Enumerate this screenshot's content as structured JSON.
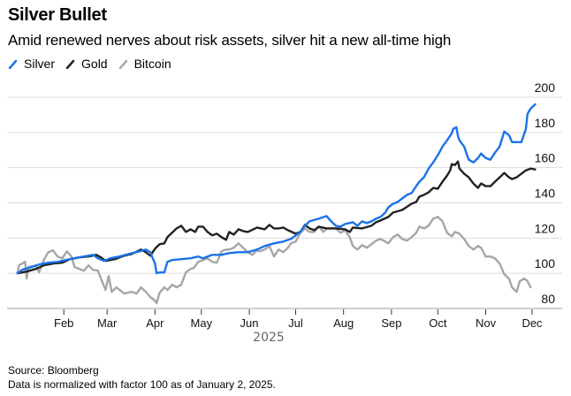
{
  "title": "Silver Bullet",
  "subtitle": "Amid renewed nerves about risk assets, silver hit a new all-time high",
  "footer": {
    "source": "Source: Bloomberg",
    "note": "Data is normalized with factor 100 as of January 2, 2025."
  },
  "chart_data": {
    "type": "line",
    "title": "Silver Bullet",
    "subtitle": "Amid renewed nerves about risk assets, silver hit a new all-time high",
    "xlabel": "2025",
    "ylabel": "",
    "x_unit": "day of year 2025 (Jan 1 = 0)",
    "xlim": [
      0,
      338
    ],
    "ylim": [
      80,
      200
    ],
    "yticks": [
      80,
      100,
      120,
      140,
      160,
      180,
      200
    ],
    "xticks": [
      {
        "label": "Feb",
        "day": 31
      },
      {
        "label": "Mar",
        "day": 59
      },
      {
        "label": "Apr",
        "day": 90
      },
      {
        "label": "May",
        "day": 120
      },
      {
        "label": "Jun",
        "day": 151
      },
      {
        "label": "Jul",
        "day": 181
      },
      {
        "label": "Aug",
        "day": 212
      },
      {
        "label": "Sep",
        "day": 243
      },
      {
        "label": "Oct",
        "day": 273
      },
      {
        "label": "Nov",
        "day": 304
      },
      {
        "label": "Dec",
        "day": 334
      }
    ],
    "grid": true,
    "legend_position": "top-left",
    "series": [
      {
        "name": "Silver",
        "color": "#1a73e8",
        "points": [
          [
            1,
            100
          ],
          [
            4,
            102
          ],
          [
            10,
            103.5
          ],
          [
            15,
            105
          ],
          [
            21,
            106
          ],
          [
            27,
            106.5
          ],
          [
            32,
            107.5
          ],
          [
            38,
            108.5
          ],
          [
            44,
            109.5
          ],
          [
            50,
            110.5
          ],
          [
            53,
            108.5
          ],
          [
            57,
            107
          ],
          [
            61,
            108.5
          ],
          [
            67,
            109.5
          ],
          [
            73,
            111
          ],
          [
            78,
            112
          ],
          [
            84,
            113.5
          ],
          [
            87,
            112
          ],
          [
            88,
            109.5
          ],
          [
            90,
            105.5
          ],
          [
            91,
            100
          ],
          [
            93,
            100.5
          ],
          [
            96,
            100.5
          ],
          [
            98,
            106.5
          ],
          [
            101,
            107.5
          ],
          [
            107,
            108
          ],
          [
            113,
            108.5
          ],
          [
            118,
            109.5
          ],
          [
            121,
            108.5
          ],
          [
            124,
            109.5
          ],
          [
            127,
            110.5
          ],
          [
            133,
            110.5
          ],
          [
            138,
            111.5
          ],
          [
            144,
            112
          ],
          [
            150,
            112
          ],
          [
            156,
            113.5
          ],
          [
            161,
            115.5
          ],
          [
            167,
            117
          ],
          [
            173,
            118
          ],
          [
            178,
            119.5
          ],
          [
            184,
            123.5
          ],
          [
            187,
            127
          ],
          [
            190,
            129.5
          ],
          [
            196,
            131
          ],
          [
            201,
            132.5
          ],
          [
            204,
            129.5
          ],
          [
            207,
            127
          ],
          [
            210,
            126.5
          ],
          [
            213,
            128
          ],
          [
            218,
            129
          ],
          [
            221,
            127
          ],
          [
            224,
            129.5
          ],
          [
            227,
            128.5
          ],
          [
            230,
            129.5
          ],
          [
            233,
            131
          ],
          [
            236,
            132
          ],
          [
            239,
            134.5
          ],
          [
            241,
            137.5
          ],
          [
            244,
            139.5
          ],
          [
            247,
            140.5
          ],
          [
            250,
            142.5
          ],
          [
            253,
            144.5
          ],
          [
            256,
            145.5
          ],
          [
            259,
            149.5
          ],
          [
            261,
            152
          ],
          [
            264,
            154.5
          ],
          [
            267,
            159.5
          ],
          [
            270,
            163
          ],
          [
            273,
            167
          ],
          [
            276,
            172
          ],
          [
            279,
            175.5
          ],
          [
            282,
            179.5
          ],
          [
            283,
            182
          ],
          [
            285,
            183
          ],
          [
            286,
            178
          ],
          [
            287,
            175.5
          ],
          [
            290,
            172
          ],
          [
            291,
            169.5
          ],
          [
            293,
            164.5
          ],
          [
            296,
            163
          ],
          [
            299,
            165.5
          ],
          [
            301,
            168
          ],
          [
            304,
            165.5
          ],
          [
            307,
            164.5
          ],
          [
            310,
            168.5
          ],
          [
            313,
            172
          ],
          [
            316,
            180.5
          ],
          [
            319,
            178.5
          ],
          [
            321,
            174.5
          ],
          [
            324,
            174.5
          ],
          [
            327,
            174.5
          ],
          [
            330,
            182
          ],
          [
            331,
            190.5
          ],
          [
            333,
            193.5
          ],
          [
            336,
            196
          ]
        ]
      },
      {
        "name": "Gold",
        "color": "#222222",
        "points": [
          [
            1,
            100
          ],
          [
            7,
            101
          ],
          [
            13,
            102.5
          ],
          [
            18,
            104.5
          ],
          [
            24,
            105.5
          ],
          [
            30,
            106
          ],
          [
            35,
            108
          ],
          [
            41,
            109
          ],
          [
            47,
            109.5
          ],
          [
            52,
            110.5
          ],
          [
            55,
            109
          ],
          [
            58,
            107
          ],
          [
            64,
            108
          ],
          [
            70,
            110
          ],
          [
            75,
            111
          ],
          [
            81,
            113.5
          ],
          [
            84,
            112
          ],
          [
            87,
            110
          ],
          [
            90,
            114
          ],
          [
            93,
            116.5
          ],
          [
            96,
            117
          ],
          [
            98,
            120.5
          ],
          [
            101,
            123
          ],
          [
            104,
            125.5
          ],
          [
            107,
            127
          ],
          [
            110,
            123.5
          ],
          [
            113,
            125
          ],
          [
            116,
            123.5
          ],
          [
            118,
            126.5
          ],
          [
            121,
            126.5
          ],
          [
            124,
            123.5
          ],
          [
            127,
            121.5
          ],
          [
            130,
            122.5
          ],
          [
            133,
            120.5
          ],
          [
            136,
            119
          ],
          [
            138,
            123.5
          ],
          [
            141,
            122
          ],
          [
            144,
            125
          ],
          [
            147,
            124
          ],
          [
            150,
            123.5
          ],
          [
            156,
            126
          ],
          [
            161,
            125
          ],
          [
            164,
            127.5
          ],
          [
            167,
            125.5
          ],
          [
            170,
            125.5
          ],
          [
            173,
            126
          ],
          [
            176,
            124.5
          ],
          [
            181,
            122.5
          ],
          [
            184,
            123.5
          ],
          [
            187,
            127.5
          ],
          [
            190,
            125.5
          ],
          [
            193,
            124.5
          ],
          [
            196,
            126.5
          ],
          [
            201,
            125.5
          ],
          [
            207,
            125.5
          ],
          [
            213,
            125
          ],
          [
            216,
            123.5
          ],
          [
            218,
            126
          ],
          [
            224,
            125.5
          ],
          [
            230,
            127
          ],
          [
            233,
            129
          ],
          [
            236,
            130
          ],
          [
            241,
            132
          ],
          [
            244,
            134.5
          ],
          [
            250,
            136
          ],
          [
            256,
            139.5
          ],
          [
            259,
            140.5
          ],
          [
            261,
            143.5
          ],
          [
            264,
            144.5
          ],
          [
            267,
            146
          ],
          [
            270,
            148.5
          ],
          [
            273,
            148
          ],
          [
            276,
            152
          ],
          [
            279,
            155.5
          ],
          [
            281,
            158.5
          ],
          [
            282,
            162
          ],
          [
            284,
            161.5
          ],
          [
            286,
            163.5
          ],
          [
            287,
            159.5
          ],
          [
            290,
            156.5
          ],
          [
            293,
            154.5
          ],
          [
            296,
            151
          ],
          [
            299,
            148.5
          ],
          [
            301,
            151
          ],
          [
            304,
            149.5
          ],
          [
            307,
            149.5
          ],
          [
            310,
            152
          ],
          [
            313,
            154.5
          ],
          [
            316,
            157
          ],
          [
            319,
            154.5
          ],
          [
            321,
            153.5
          ],
          [
            324,
            154.5
          ],
          [
            327,
            156.5
          ],
          [
            330,
            158.5
          ],
          [
            333,
            159.5
          ],
          [
            336,
            159
          ]
        ]
      },
      {
        "name": "Bitcoin",
        "color": "#a6a6a6",
        "points": [
          [
            1,
            100
          ],
          [
            2,
            104.5
          ],
          [
            6,
            106.5
          ],
          [
            7,
            97
          ],
          [
            8,
            103.5
          ],
          [
            13,
            104.5
          ],
          [
            15,
            100.5
          ],
          [
            18,
            107.5
          ],
          [
            21,
            112
          ],
          [
            24,
            113
          ],
          [
            27,
            109.5
          ],
          [
            30,
            108.5
          ],
          [
            33,
            112.5
          ],
          [
            36,
            109.5
          ],
          [
            38,
            103.5
          ],
          [
            41,
            102.5
          ],
          [
            44,
            101.5
          ],
          [
            47,
            104.5
          ],
          [
            50,
            102
          ],
          [
            53,
            101.5
          ],
          [
            55,
            97
          ],
          [
            58,
            90.5
          ],
          [
            60,
            98.5
          ],
          [
            62,
            89.5
          ],
          [
            65,
            92
          ],
          [
            70,
            88.5
          ],
          [
            75,
            89.5
          ],
          [
            78,
            88.5
          ],
          [
            81,
            92
          ],
          [
            84,
            89.5
          ],
          [
            87,
            86.5
          ],
          [
            90,
            84.5
          ],
          [
            91,
            83
          ],
          [
            93,
            89
          ],
          [
            96,
            92
          ],
          [
            98,
            90.5
          ],
          [
            101,
            93.5
          ],
          [
            104,
            92
          ],
          [
            107,
            93.5
          ],
          [
            110,
            100.5
          ],
          [
            113,
            102.5
          ],
          [
            115,
            103
          ],
          [
            118,
            106.5
          ],
          [
            121,
            107.5
          ],
          [
            124,
            108.5
          ],
          [
            127,
            106.5
          ],
          [
            130,
            106
          ],
          [
            133,
            112.5
          ],
          [
            136,
            113.5
          ],
          [
            138,
            113.5
          ],
          [
            141,
            114.5
          ],
          [
            144,
            117
          ],
          [
            147,
            114.5
          ],
          [
            150,
            112
          ],
          [
            153,
            110.5
          ],
          [
            156,
            113
          ],
          [
            158,
            112.5
          ],
          [
            161,
            113.5
          ],
          [
            164,
            115.5
          ],
          [
            167,
            109.5
          ],
          [
            170,
            113.5
          ],
          [
            173,
            112
          ],
          [
            176,
            114.5
          ],
          [
            178,
            117
          ],
          [
            181,
            118
          ],
          [
            184,
            123
          ],
          [
            187,
            125.5
          ],
          [
            190,
            123.5
          ],
          [
            193,
            123.5
          ],
          [
            196,
            126.5
          ],
          [
            199,
            123.5
          ],
          [
            201,
            125.5
          ],
          [
            207,
            125.5
          ],
          [
            210,
            123
          ],
          [
            213,
            124.5
          ],
          [
            216,
            120.5
          ],
          [
            218,
            115.5
          ],
          [
            221,
            113.5
          ],
          [
            224,
            116
          ],
          [
            227,
            114.5
          ],
          [
            230,
            116.5
          ],
          [
            233,
            118.5
          ],
          [
            236,
            119.5
          ],
          [
            239,
            118
          ],
          [
            241,
            117
          ],
          [
            244,
            120.5
          ],
          [
            247,
            122
          ],
          [
            250,
            119.5
          ],
          [
            253,
            118.5
          ],
          [
            256,
            120.5
          ],
          [
            259,
            123
          ],
          [
            261,
            126.5
          ],
          [
            264,
            125.5
          ],
          [
            267,
            127
          ],
          [
            270,
            131
          ],
          [
            273,
            132
          ],
          [
            276,
            129.5
          ],
          [
            279,
            123
          ],
          [
            282,
            121
          ],
          [
            284,
            123.5
          ],
          [
            287,
            122.5
          ],
          [
            290,
            119.5
          ],
          [
            293,
            115.5
          ],
          [
            296,
            113.5
          ],
          [
            299,
            115.5
          ],
          [
            301,
            114.5
          ],
          [
            304,
            109.5
          ],
          [
            307,
            109.5
          ],
          [
            310,
            108.5
          ],
          [
            313,
            105.5
          ],
          [
            316,
            99.5
          ],
          [
            319,
            97
          ],
          [
            321,
            92
          ],
          [
            324,
            89.5
          ],
          [
            326,
            95.5
          ],
          [
            329,
            97
          ],
          [
            331,
            95.5
          ],
          [
            333,
            92
          ]
        ]
      }
    ]
  }
}
